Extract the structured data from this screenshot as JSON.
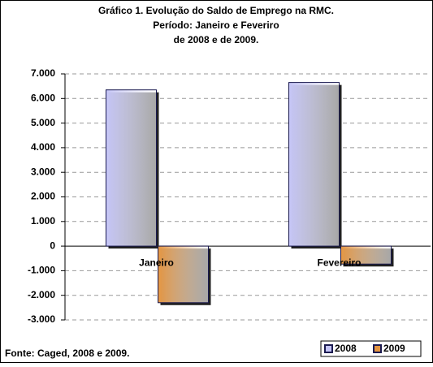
{
  "chart_data": {
    "type": "bar",
    "title": [
      "Gráfico 1. Evolução do Saldo de Emprego na RMC.",
      "Período: Janeiro e Feveriro",
      "de 2008 e de 2009."
    ],
    "categories": [
      "Janeiro",
      "Fevereiro"
    ],
    "series": [
      {
        "name": "2008",
        "color": "#c4c4f6",
        "values": [
          6350,
          6650
        ]
      },
      {
        "name": "2009",
        "color": "#e39440",
        "values": [
          -2300,
          -730
        ]
      }
    ],
    "ylim": [
      -3000,
      7000
    ],
    "yticks": [
      {
        "value": -3000,
        "label": "-3.000"
      },
      {
        "value": -2000,
        "label": "-2.000"
      },
      {
        "value": -1000,
        "label": "-1.000"
      },
      0,
      {
        "value": 1000,
        "label": "1.000"
      },
      {
        "value": 2000,
        "label": "2.000"
      },
      {
        "value": 3000,
        "label": "3.000"
      },
      {
        "value": 4000,
        "label": "4.000"
      },
      {
        "value": 5000,
        "label": "5.000"
      },
      {
        "value": 6000,
        "label": "6.000"
      },
      {
        "value": 7000,
        "label": "7.000"
      }
    ],
    "grid": true,
    "legend": "bottom-right",
    "source": "Fonte: Caged, 2008 e 2009."
  }
}
